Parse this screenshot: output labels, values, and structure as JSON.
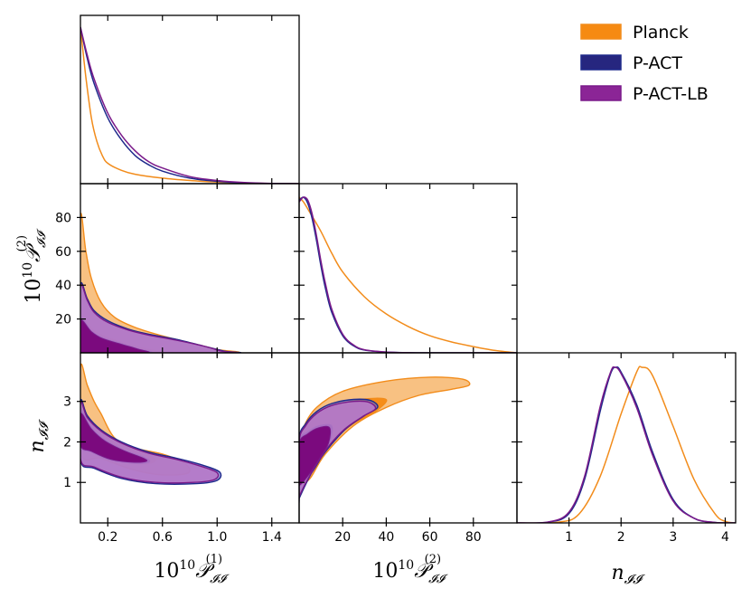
{
  "chart_data": {
    "type": "corner",
    "parameters": [
      {
        "key": "p1",
        "label_prefix": "10",
        "label_exp": "10",
        "label_sym": "𝒫",
        "label_sub": "𝓘𝓘",
        "label_sup": "(1)",
        "ticks": [
          "0.2",
          "0.6",
          "1.0",
          "1.4"
        ]
      },
      {
        "key": "p2",
        "label_prefix": "10",
        "label_exp": "10",
        "label_sym": "𝒫",
        "label_sub": "𝓘𝓘",
        "label_sup": "(2)",
        "ticks": [
          "20",
          "40",
          "60",
          "80"
        ]
      },
      {
        "key": "n",
        "label_sym": "n",
        "label_sub": "𝓘𝓘",
        "ticks": [
          "1",
          "2",
          "3",
          "4"
        ]
      }
    ],
    "ranges": {
      "p1": [
        0,
        1.6
      ],
      "p2": [
        0,
        100
      ],
      "n": [
        0,
        4.2
      ]
    },
    "y_ticks": {
      "p2": [
        "20",
        "40",
        "60",
        "80"
      ],
      "n": [
        "1",
        "2",
        "3"
      ]
    },
    "legend": {
      "position": "top-right",
      "entries": [
        "Planck",
        "P-ACT",
        "P-ACT-LB"
      ]
    },
    "colors": {
      "Planck": {
        "line": "#f28c1b",
        "fill": "#f7b66c",
        "dark": "#f68a12"
      },
      "P-ACT": {
        "line": "#1f2a8c",
        "fill": "#2a2a8e",
        "dark": "#26267f"
      },
      "P-ACT-LB": {
        "line": "#7a1a8a",
        "fill": "#b779c9",
        "dark": "#7b0a7e"
      }
    },
    "series": [
      {
        "name": "Planck",
        "pdf_p1": {
          "x": [
            0,
            0.04,
            0.08,
            0.12,
            0.16,
            0.2,
            0.3,
            0.4,
            0.6,
            0.8,
            1.0,
            1.2,
            1.4,
            1.6
          ],
          "y": [
            1.0,
            0.68,
            0.42,
            0.27,
            0.18,
            0.13,
            0.085,
            0.06,
            0.035,
            0.02,
            0.01,
            0.004,
            0.001,
            0
          ]
        },
        "pdf_p2": {
          "x": [
            0,
            2,
            5,
            10,
            15,
            20,
            30,
            40,
            50,
            60,
            70,
            80,
            90,
            100
          ],
          "y": [
            1.0,
            0.97,
            0.9,
            0.78,
            0.64,
            0.52,
            0.36,
            0.25,
            0.17,
            0.11,
            0.07,
            0.04,
            0.015,
            0
          ]
        },
        "pdf_n": {
          "x": [
            0,
            0.8,
            1.2,
            1.6,
            2.0,
            2.3,
            2.4,
            2.6,
            3.0,
            3.4,
            3.8,
            4.0,
            4.2
          ],
          "y": [
            0,
            0.005,
            0.06,
            0.3,
            0.7,
            0.97,
            1.0,
            0.95,
            0.62,
            0.28,
            0.06,
            0.01,
            0
          ]
        },
        "c95_p1_p2": [
          [
            0,
            0
          ],
          [
            0,
            80
          ],
          [
            0.04,
            60
          ],
          [
            0.08,
            44
          ],
          [
            0.15,
            30
          ],
          [
            0.25,
            21
          ],
          [
            0.4,
            15
          ],
          [
            0.6,
            10
          ],
          [
            0.8,
            6
          ],
          [
            1.0,
            2
          ],
          [
            1.1,
            0
          ]
        ],
        "c68_p1_p2": [
          [
            0,
            0
          ],
          [
            0,
            20
          ],
          [
            0.1,
            13
          ],
          [
            0.2,
            9
          ],
          [
            0.35,
            5
          ],
          [
            0.5,
            2
          ],
          [
            0.6,
            0
          ]
        ],
        "c95_p1_n": [
          [
            0,
            3.85
          ],
          [
            0.05,
            3.4
          ],
          [
            0.1,
            3.0
          ],
          [
            0.15,
            2.7
          ],
          [
            0.25,
            2.1
          ],
          [
            0.4,
            1.85
          ],
          [
            0.6,
            1.7
          ],
          [
            0.75,
            1.5
          ],
          [
            0.8,
            1.3
          ],
          [
            0.75,
            1.2
          ],
          [
            0.55,
            1.2
          ],
          [
            0.35,
            1.35
          ],
          [
            0.15,
            1.6
          ],
          [
            0,
            1.75
          ]
        ],
        "c68_p1_n": [
          [
            0,
            2.8
          ],
          [
            0.1,
            2.4
          ],
          [
            0.25,
            2.0
          ],
          [
            0.45,
            1.75
          ],
          [
            0.55,
            1.55
          ],
          [
            0.45,
            1.45
          ],
          [
            0.25,
            1.6
          ],
          [
            0.1,
            1.8
          ],
          [
            0,
            2.0
          ]
        ],
        "c95_p2_n": [
          [
            0,
            0.9
          ],
          [
            0,
            1.8
          ],
          [
            2,
            2.35
          ],
          [
            8,
            2.85
          ],
          [
            20,
            3.25
          ],
          [
            40,
            3.5
          ],
          [
            60,
            3.6
          ],
          [
            75,
            3.55
          ],
          [
            78,
            3.4
          ],
          [
            70,
            3.3
          ],
          [
            55,
            3.15
          ],
          [
            40,
            2.85
          ],
          [
            25,
            2.4
          ],
          [
            12,
            1.7
          ],
          [
            5,
            1.1
          ],
          [
            0,
            0.9
          ]
        ],
        "c68_p2_n": [
          [
            0,
            1.0
          ],
          [
            0,
            2.1
          ],
          [
            5,
            2.55
          ],
          [
            15,
            2.85
          ],
          [
            28,
            3.05
          ],
          [
            40,
            3.05
          ],
          [
            35,
            2.75
          ],
          [
            25,
            2.45
          ],
          [
            15,
            2.0
          ],
          [
            8,
            1.5
          ],
          [
            0,
            1.0
          ]
        ]
      },
      {
        "name": "P-ACT",
        "pdf_p1": {
          "x": [
            0,
            0.05,
            0.1,
            0.2,
            0.3,
            0.4,
            0.5,
            0.6,
            0.8,
            1.0,
            1.2,
            1.4,
            1.6
          ],
          "y": [
            1.0,
            0.8,
            0.64,
            0.42,
            0.28,
            0.18,
            0.12,
            0.08,
            0.035,
            0.015,
            0.005,
            0.001,
            0
          ]
        },
        "pdf_p2": {
          "x": [
            0,
            2,
            4,
            6,
            8,
            10,
            12,
            15,
            20,
            25,
            30,
            40,
            50,
            60,
            100
          ],
          "y": [
            0.98,
            1.0,
            0.96,
            0.86,
            0.72,
            0.56,
            0.42,
            0.26,
            0.11,
            0.045,
            0.018,
            0.004,
            0.001,
            0,
            0
          ]
        },
        "pdf_n": {
          "x": [
            0,
            0.6,
            1.0,
            1.3,
            1.6,
            1.8,
            1.9,
            2.0,
            2.3,
            2.6,
            3.0,
            3.4,
            3.8,
            4.2
          ],
          "y": [
            0,
            0.005,
            0.06,
            0.28,
            0.72,
            0.96,
            1.0,
            0.97,
            0.76,
            0.46,
            0.15,
            0.03,
            0.003,
            0
          ]
        },
        "c95_p1_p2": [
          [
            0,
            0
          ],
          [
            0,
            40
          ],
          [
            0.05,
            32
          ],
          [
            0.1,
            25
          ],
          [
            0.2,
            19
          ],
          [
            0.35,
            14
          ],
          [
            0.5,
            11
          ],
          [
            0.7,
            8
          ],
          [
            0.9,
            4
          ],
          [
            1.05,
            1
          ],
          [
            1.1,
            0
          ]
        ],
        "c68_p1_p2": [
          [
            0,
            0
          ],
          [
            0,
            20
          ],
          [
            0.08,
            13
          ],
          [
            0.16,
            9
          ],
          [
            0.3,
            5.5
          ],
          [
            0.42,
            2.5
          ],
          [
            0.5,
            0
          ]
        ],
        "c95_p1_n": [
          [
            0,
            3.0
          ],
          [
            0.05,
            2.65
          ],
          [
            0.15,
            2.3
          ],
          [
            0.3,
            2.0
          ],
          [
            0.5,
            1.75
          ],
          [
            0.7,
            1.6
          ],
          [
            0.9,
            1.42
          ],
          [
            1.02,
            1.25
          ],
          [
            1.0,
            1.05
          ],
          [
            0.85,
            0.97
          ],
          [
            0.55,
            0.97
          ],
          [
            0.3,
            1.1
          ],
          [
            0.1,
            1.35
          ],
          [
            0,
            1.55
          ]
        ],
        "c68_p1_n": [
          [
            0,
            2.75
          ],
          [
            0.08,
            2.35
          ],
          [
            0.18,
            2.05
          ],
          [
            0.32,
            1.8
          ],
          [
            0.48,
            1.6
          ],
          [
            0.5,
            1.5
          ],
          [
            0.4,
            1.47
          ],
          [
            0.22,
            1.55
          ],
          [
            0.08,
            1.75
          ],
          [
            0,
            1.9
          ]
        ],
        "c95_p2_n": [
          [
            0,
            0.6
          ],
          [
            0,
            2.05
          ],
          [
            3,
            2.45
          ],
          [
            8,
            2.75
          ],
          [
            15,
            2.95
          ],
          [
            25,
            3.05
          ],
          [
            33,
            3.02
          ],
          [
            36,
            2.85
          ],
          [
            30,
            2.65
          ],
          [
            22,
            2.35
          ],
          [
            15,
            1.95
          ],
          [
            8,
            1.45
          ],
          [
            3,
            0.95
          ],
          [
            0,
            0.6
          ]
        ],
        "c68_p2_n": [
          [
            0,
            0.9
          ],
          [
            0,
            2.0
          ],
          [
            4,
            2.25
          ],
          [
            9,
            2.4
          ],
          [
            15,
            2.4
          ],
          [
            14,
            2.0
          ],
          [
            10,
            1.6
          ],
          [
            6,
            1.25
          ],
          [
            2,
            1.0
          ],
          [
            0,
            0.9
          ]
        ]
      },
      {
        "name": "P-ACT-LB",
        "pdf_p1": {
          "x": [
            0,
            0.05,
            0.1,
            0.2,
            0.3,
            0.4,
            0.5,
            0.6,
            0.8,
            1.0,
            1.2,
            1.4,
            1.6
          ],
          "y": [
            1.0,
            0.82,
            0.67,
            0.45,
            0.31,
            0.21,
            0.14,
            0.1,
            0.045,
            0.02,
            0.007,
            0.002,
            0
          ]
        },
        "pdf_p2": {
          "x": [
            0,
            2,
            4,
            6,
            8,
            10,
            12,
            15,
            20,
            25,
            30,
            40,
            50,
            60,
            100
          ],
          "y": [
            0.97,
            1.0,
            0.98,
            0.89,
            0.75,
            0.59,
            0.45,
            0.28,
            0.12,
            0.05,
            0.02,
            0.005,
            0.001,
            0,
            0
          ]
        },
        "pdf_n": {
          "x": [
            0,
            0.6,
            1.0,
            1.3,
            1.6,
            1.8,
            1.88,
            2.0,
            2.3,
            2.6,
            3.0,
            3.4,
            3.8,
            4.2
          ],
          "y": [
            0,
            0.006,
            0.07,
            0.3,
            0.75,
            0.97,
            1.0,
            0.96,
            0.74,
            0.44,
            0.14,
            0.03,
            0.003,
            0
          ]
        },
        "c95_p1_p2": [
          [
            0,
            0
          ],
          [
            0,
            39
          ],
          [
            0.05,
            31
          ],
          [
            0.1,
            24
          ],
          [
            0.2,
            18
          ],
          [
            0.35,
            13.5
          ],
          [
            0.5,
            10.5
          ],
          [
            0.7,
            7.5
          ],
          [
            0.9,
            4
          ],
          [
            1.03,
            1
          ],
          [
            1.08,
            0
          ]
        ],
        "c68_p1_p2": [
          [
            0,
            0
          ],
          [
            0,
            19
          ],
          [
            0.08,
            12.5
          ],
          [
            0.16,
            8.5
          ],
          [
            0.3,
            5
          ],
          [
            0.42,
            2.2
          ],
          [
            0.48,
            0
          ]
        ],
        "c95_p1_n": [
          [
            0,
            2.95
          ],
          [
            0.05,
            2.6
          ],
          [
            0.15,
            2.27
          ],
          [
            0.3,
            1.97
          ],
          [
            0.5,
            1.72
          ],
          [
            0.7,
            1.57
          ],
          [
            0.88,
            1.4
          ],
          [
            1.0,
            1.24
          ],
          [
            0.98,
            1.07
          ],
          [
            0.83,
            1.0
          ],
          [
            0.55,
            1.0
          ],
          [
            0.3,
            1.13
          ],
          [
            0.1,
            1.38
          ],
          [
            0,
            1.58
          ]
        ],
        "c68_p1_n": [
          [
            0,
            2.7
          ],
          [
            0.08,
            2.32
          ],
          [
            0.18,
            2.02
          ],
          [
            0.32,
            1.78
          ],
          [
            0.46,
            1.6
          ],
          [
            0.48,
            1.52
          ],
          [
            0.38,
            1.5
          ],
          [
            0.22,
            1.57
          ],
          [
            0.08,
            1.77
          ],
          [
            0,
            1.92
          ]
        ],
        "c95_p2_n": [
          [
            0,
            0.65
          ],
          [
            0,
            2.0
          ],
          [
            3,
            2.4
          ],
          [
            8,
            2.7
          ],
          [
            15,
            2.9
          ],
          [
            25,
            3.0
          ],
          [
            32,
            2.98
          ],
          [
            35,
            2.82
          ],
          [
            29,
            2.62
          ],
          [
            21,
            2.32
          ],
          [
            14,
            1.92
          ],
          [
            8,
            1.45
          ],
          [
            3,
            0.98
          ],
          [
            0,
            0.65
          ]
        ],
        "c68_p2_n": [
          [
            0,
            0.92
          ],
          [
            0,
            1.95
          ],
          [
            4,
            2.2
          ],
          [
            9,
            2.35
          ],
          [
            14,
            2.35
          ],
          [
            13.5,
            1.97
          ],
          [
            9.5,
            1.6
          ],
          [
            5.5,
            1.27
          ],
          [
            2,
            1.02
          ],
          [
            0,
            0.92
          ]
        ]
      }
    ]
  }
}
